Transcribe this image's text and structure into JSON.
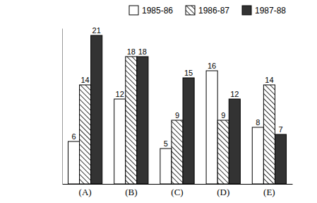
{
  "chart_data": {
    "type": "bar",
    "categories": [
      "(A)",
      "(B)",
      "(C)",
      "(D)",
      "(E)"
    ],
    "series": [
      {
        "name": "1985-86",
        "color": "#ffffff",
        "values": [
          6,
          12,
          5,
          16,
          8
        ]
      },
      {
        "name": "1986-87",
        "color": "#000000",
        "values": [
          14,
          18,
          9,
          9,
          14
        ]
      },
      {
        "name": "1987-88",
        "color": "#333333",
        "values": [
          21,
          18,
          15,
          12,
          7
        ]
      }
    ],
    "ylim": [
      0,
      22
    ],
    "data_labels": true,
    "tick_labels": "x",
    "legend": "top"
  }
}
